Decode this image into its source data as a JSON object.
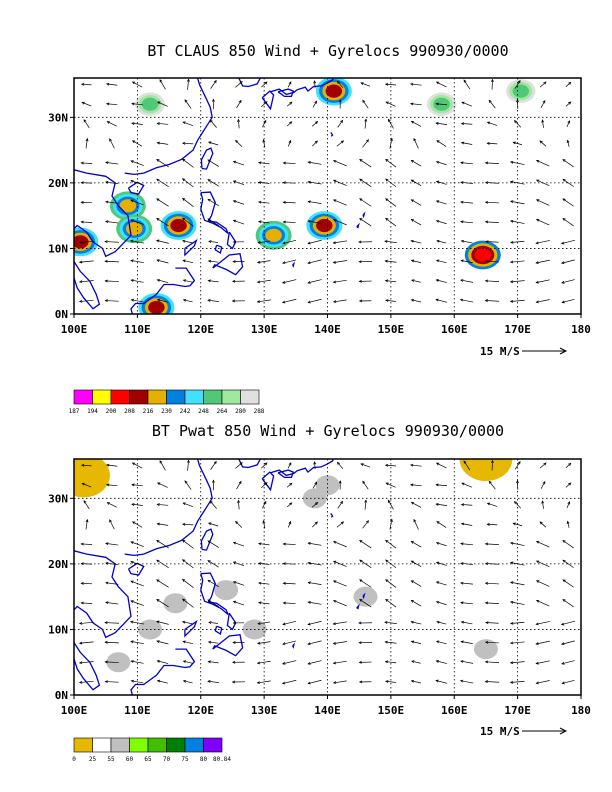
{
  "chart_data": [
    {
      "type": "heatmap",
      "title": "BT CLAUS 850 Wind + Gyrelocs 990930/0000",
      "xlim": [
        100,
        180
      ],
      "ylim": [
        0,
        36
      ],
      "x_ticks": [
        100,
        110,
        120,
        130,
        140,
        150,
        160,
        170,
        180
      ],
      "x_tick_labels": [
        "100E",
        "110E",
        "120E",
        "130E",
        "140E",
        "150E",
        "160E",
        "170E",
        "180"
      ],
      "y_ticks": [
        0,
        10,
        20,
        30
      ],
      "y_tick_labels": [
        "0N",
        "10N",
        "20N",
        "30N"
      ],
      "grid": "dotted",
      "vector_reference": "15 M/S",
      "colorbar": {
        "levels": [
          "187",
          "194",
          "200",
          "208",
          "216",
          "230",
          "242",
          "248",
          "264",
          "280",
          "288"
        ],
        "colors": [
          "#ff00ff",
          "#ffff00",
          "#ff0000",
          "#a00000",
          "#e6b000",
          "#0080e0",
          "#40e0ff",
          "#50c878",
          "#a0e8a0",
          "#e0e0e0"
        ]
      },
      "features": [
        {
          "lon": 101,
          "lat": 11,
          "value": 208
        },
        {
          "lon": 108.5,
          "lat": 16.5,
          "value": 216
        },
        {
          "lon": 109.5,
          "lat": 13,
          "value": 216
        },
        {
          "lon": 116.5,
          "lat": 13.5,
          "value": 208
        },
        {
          "lon": 131.5,
          "lat": 12,
          "value": 216
        },
        {
          "lon": 139.5,
          "lat": 13.5,
          "value": 208
        },
        {
          "lon": 141,
          "lat": 34,
          "value": 208
        },
        {
          "lon": 164.5,
          "lat": 9,
          "value": 200
        },
        {
          "lon": 113,
          "lat": 1,
          "value": 208
        },
        {
          "lon": 112,
          "lat": 32,
          "value": 248
        },
        {
          "lon": 170.5,
          "lat": 34,
          "value": 248
        },
        {
          "lon": 158,
          "lat": 32,
          "value": 248
        }
      ]
    },
    {
      "type": "heatmap",
      "title": "BT Pwat 850 Wind + Gyrelocs 990930/0000",
      "xlim": [
        100,
        180
      ],
      "ylim": [
        0,
        36
      ],
      "x_ticks": [
        100,
        110,
        120,
        130,
        140,
        150,
        160,
        170,
        180
      ],
      "x_tick_labels": [
        "100E",
        "110E",
        "120E",
        "130E",
        "140E",
        "150E",
        "160E",
        "170E",
        "180"
      ],
      "y_ticks": [
        0,
        10,
        20,
        30
      ],
      "y_tick_labels": [
        "0N",
        "10N",
        "20N",
        "30N"
      ],
      "grid": "dotted",
      "vector_reference": "15 M/S",
      "colorbar": {
        "levels": [
          "0",
          "25",
          "55",
          "60",
          "65",
          "70",
          "75",
          "80",
          "80.84"
        ],
        "colors": [
          "#e6b800",
          "#ffffff",
          "#c0c0c0",
          "#80ff00",
          "#40c000",
          "#008000",
          "#0080e0",
          "#8000ff"
        ]
      },
      "features": [
        {
          "lon": 101.5,
          "lat": 33.5,
          "value": 0
        },
        {
          "lon": 165,
          "lat": 36,
          "value": 0
        },
        {
          "lon": 116,
          "lat": 14,
          "value": 55
        },
        {
          "lon": 107,
          "lat": 5,
          "value": 55
        },
        {
          "lon": 124,
          "lat": 16,
          "value": 55
        },
        {
          "lon": 128.5,
          "lat": 10,
          "value": 55
        },
        {
          "lon": 140,
          "lat": 32,
          "value": 55
        },
        {
          "lon": 138,
          "lat": 30,
          "value": 55
        },
        {
          "lon": 146,
          "lat": 15,
          "value": 55
        },
        {
          "lon": 165,
          "lat": 7,
          "value": 55
        },
        {
          "lon": 112,
          "lat": 10,
          "value": 55
        }
      ]
    }
  ]
}
